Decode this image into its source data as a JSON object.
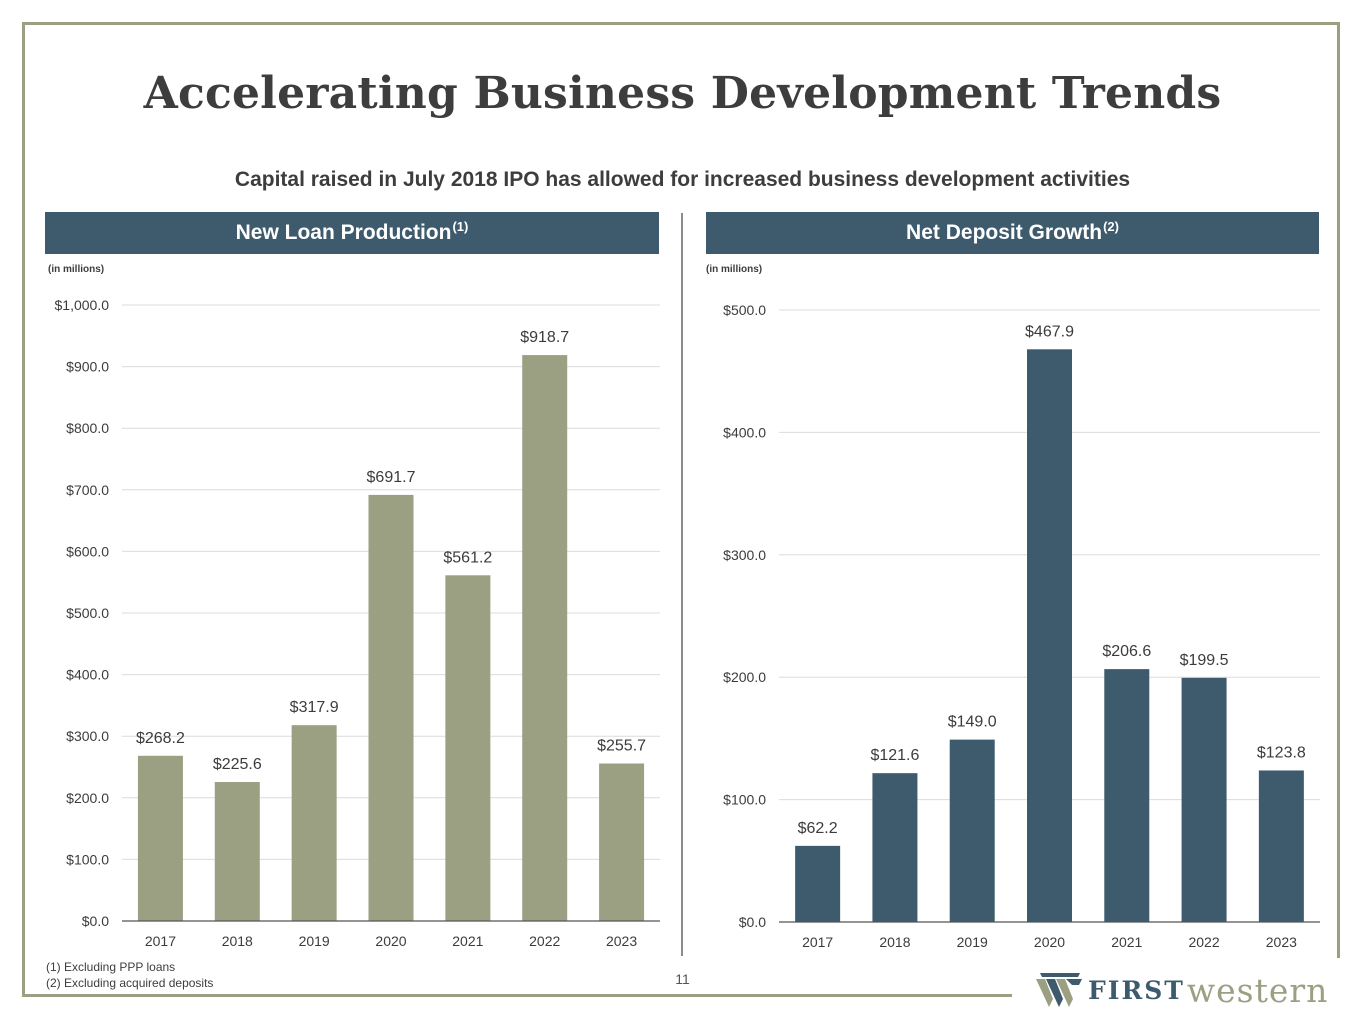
{
  "title": "Accelerating Business Development Trends",
  "subtitle": "Capital raised in July 2018 IPO has allowed for increased business development activities",
  "left_panel": {
    "title": "New Loan Production",
    "note_marker": "(1)",
    "units": "(in millions)"
  },
  "right_panel": {
    "title": "Net Deposit Growth",
    "note_marker": "(2)",
    "units": "(in millions)"
  },
  "footnotes": [
    "(1)  Excluding PPP loans",
    "(2)  Excluding acquired deposits"
  ],
  "page_number": "11",
  "logo": {
    "first": "FIRST",
    "western": "western"
  },
  "colors": {
    "header": "#3e5b6e",
    "loan_bar": "#9ba083",
    "deposit_bar": "#3e5b6e",
    "frame": "#9ba083"
  },
  "chart_data": [
    {
      "type": "bar",
      "title": "New Loan Production(1)",
      "ylabel": "(in millions)",
      "categories": [
        "2017",
        "2018",
        "2019",
        "2020",
        "2021",
        "2022",
        "2023"
      ],
      "values": [
        268.2,
        225.6,
        317.9,
        691.7,
        561.2,
        918.7,
        255.7
      ],
      "value_labels": [
        "$268.2",
        "$225.6",
        "$317.9",
        "$691.7",
        "$561.2",
        "$918.7",
        "$255.7"
      ],
      "yticks": [
        "$0.0",
        "$100.0",
        "$200.0",
        "$300.0",
        "$400.0",
        "$500.0",
        "$600.0",
        "$700.0",
        "$800.0",
        "$900.0",
        "$1,000.0"
      ],
      "ylim": [
        0,
        1000
      ],
      "color": "#9ba083",
      "grid": true
    },
    {
      "type": "bar",
      "title": "Net Deposit Growth(2)",
      "ylabel": "(in millions)",
      "categories": [
        "2017",
        "2018",
        "2019",
        "2020",
        "2021",
        "2022",
        "2023"
      ],
      "values": [
        62.2,
        121.6,
        149.0,
        467.9,
        206.6,
        199.5,
        123.8
      ],
      "value_labels": [
        "$62.2",
        "$121.6",
        "$149.0",
        "$467.9",
        "$206.6",
        "$199.5",
        "$123.8"
      ],
      "yticks": [
        "$0.0",
        "$100.0",
        "$200.0",
        "$300.0",
        "$400.0",
        "$500.0"
      ],
      "ylim": [
        0,
        500
      ],
      "color": "#3e5b6e",
      "grid": true
    }
  ]
}
